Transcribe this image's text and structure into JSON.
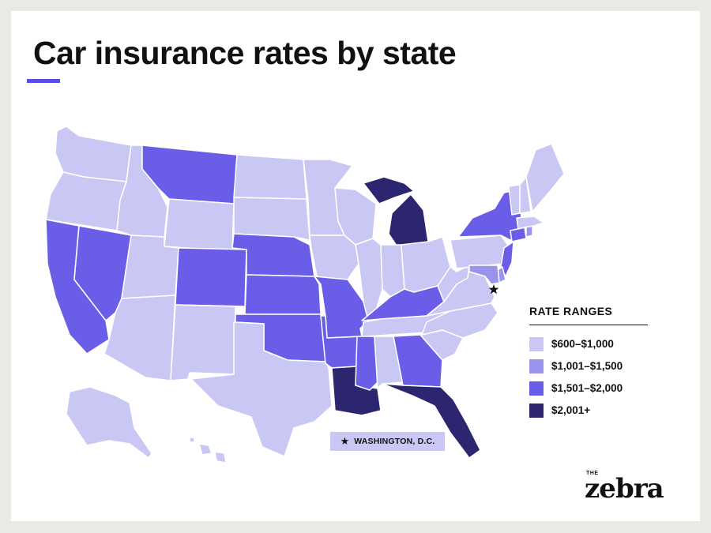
{
  "title": "Car insurance rates by state",
  "legend": {
    "title": "RATE RANGES",
    "ranges": [
      {
        "label": "$600–$1,000",
        "color": "#c9c7f3"
      },
      {
        "label": "$1,001–$1,500",
        "color": "#9a93ee"
      },
      {
        "label": "$1,501–$2,000",
        "color": "#6a5de8"
      },
      {
        "label": "$2,001+",
        "color": "#2c2570"
      }
    ]
  },
  "dc_marker": {
    "icon": "star-icon",
    "label": "WASHINGTON, D.C."
  },
  "logo": {
    "small": "THE",
    "word": "zebra"
  },
  "map_data": {
    "regions": [
      {
        "name": "WA",
        "range": 0
      },
      {
        "name": "OR",
        "range": 0
      },
      {
        "name": "CA",
        "range": 2
      },
      {
        "name": "NV",
        "range": 2
      },
      {
        "name": "ID",
        "range": 0
      },
      {
        "name": "MT",
        "range": 2
      },
      {
        "name": "WY",
        "range": 0
      },
      {
        "name": "UT",
        "range": 0
      },
      {
        "name": "AZ",
        "range": 0
      },
      {
        "name": "CO",
        "range": 2
      },
      {
        "name": "NM",
        "range": 0
      },
      {
        "name": "ND",
        "range": 0
      },
      {
        "name": "SD",
        "range": 0
      },
      {
        "name": "NE",
        "range": 2
      },
      {
        "name": "KS",
        "range": 2
      },
      {
        "name": "OK",
        "range": 2
      },
      {
        "name": "TX",
        "range": 0
      },
      {
        "name": "MN",
        "range": 0
      },
      {
        "name": "IA",
        "range": 0
      },
      {
        "name": "MO",
        "range": 2
      },
      {
        "name": "AR",
        "range": 2
      },
      {
        "name": "LA",
        "range": 3
      },
      {
        "name": "WI",
        "range": 0
      },
      {
        "name": "IL",
        "range": 0
      },
      {
        "name": "MI",
        "range": 3
      },
      {
        "name": "IN",
        "range": 0
      },
      {
        "name": "OH",
        "range": 0
      },
      {
        "name": "KY",
        "range": 2
      },
      {
        "name": "TN",
        "range": 0
      },
      {
        "name": "MS",
        "range": 2
      },
      {
        "name": "AL",
        "range": 0
      },
      {
        "name": "GA",
        "range": 2
      },
      {
        "name": "FL",
        "range": 3
      },
      {
        "name": "SC",
        "range": 0
      },
      {
        "name": "NC",
        "range": 0
      },
      {
        "name": "VA",
        "range": 0
      },
      {
        "name": "WV",
        "range": 0
      },
      {
        "name": "PA",
        "range": 0
      },
      {
        "name": "NY",
        "range": 2
      },
      {
        "name": "NJ",
        "range": 2
      },
      {
        "name": "DE",
        "range": 1
      },
      {
        "name": "MD",
        "range": 1
      },
      {
        "name": "CT",
        "range": 2
      },
      {
        "name": "RI",
        "range": 1
      },
      {
        "name": "MA",
        "range": 0
      },
      {
        "name": "VT",
        "range": 0
      },
      {
        "name": "NH",
        "range": 0
      },
      {
        "name": "ME",
        "range": 0
      },
      {
        "name": "AK",
        "range": 0
      },
      {
        "name": "HI",
        "range": 0
      }
    ]
  }
}
